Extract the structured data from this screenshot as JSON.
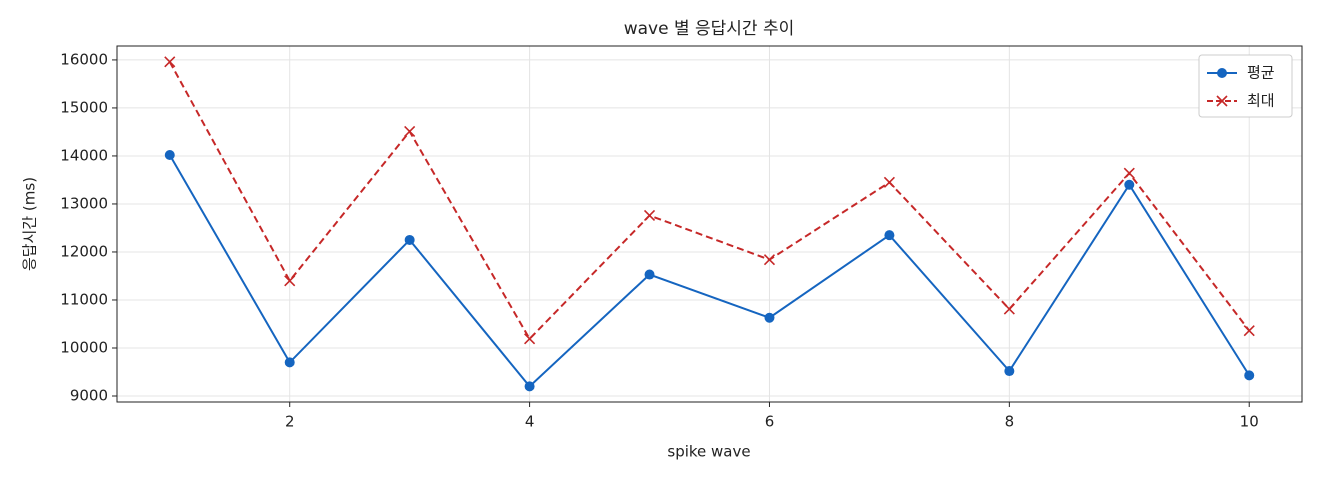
{
  "chart_data": {
    "type": "line",
    "title": "wave 별 응답시간 추이",
    "xlabel": "spike wave",
    "ylabel": "응답시간 (ms)",
    "x": [
      1,
      2,
      3,
      4,
      5,
      6,
      7,
      8,
      9,
      10
    ],
    "series": [
      {
        "name": "평균",
        "color": "#1565c0",
        "marker": "o",
        "linestyle": "solid",
        "values": [
          14020,
          9700,
          12250,
          9200,
          11530,
          10630,
          12350,
          9520,
          13400,
          9430
        ]
      },
      {
        "name": "최대",
        "color": "#c62828",
        "marker": "x",
        "linestyle": "dashed",
        "values": [
          15960,
          11400,
          14510,
          10190,
          12760,
          11840,
          13450,
          10810,
          13640,
          10360
        ]
      }
    ],
    "xlim": [
      0.56,
      10.44
    ],
    "xticks": [
      2,
      4,
      6,
      8,
      10
    ],
    "ylim": [
      8875,
      16290
    ],
    "yticks": [
      9000,
      10000,
      11000,
      12000,
      13000,
      14000,
      15000,
      16000
    ],
    "grid": true,
    "legend": "upper right"
  }
}
